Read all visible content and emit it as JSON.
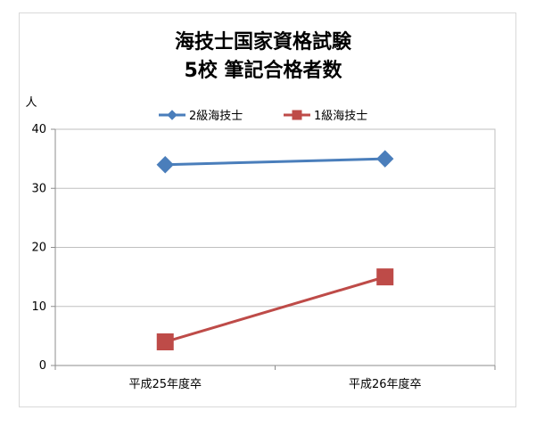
{
  "chart_data": {
    "type": "line",
    "title_lines": [
      "海技士国家資格試験",
      "5校 筆記合格者数"
    ],
    "ylabel": "人",
    "categories": [
      "平成25年度卒",
      "平成26年度卒"
    ],
    "ylim": [
      0,
      40
    ],
    "yticks": [
      0,
      10,
      20,
      30,
      40
    ],
    "grid": true,
    "legend_position": "top",
    "series": [
      {
        "name": "2級海技士",
        "values": [
          34,
          35
        ],
        "color": "#4a7ebb",
        "marker": "diamond"
      },
      {
        "name": "1級海技士",
        "values": [
          4,
          15
        ],
        "color": "#be4b48",
        "marker": "square"
      }
    ]
  }
}
